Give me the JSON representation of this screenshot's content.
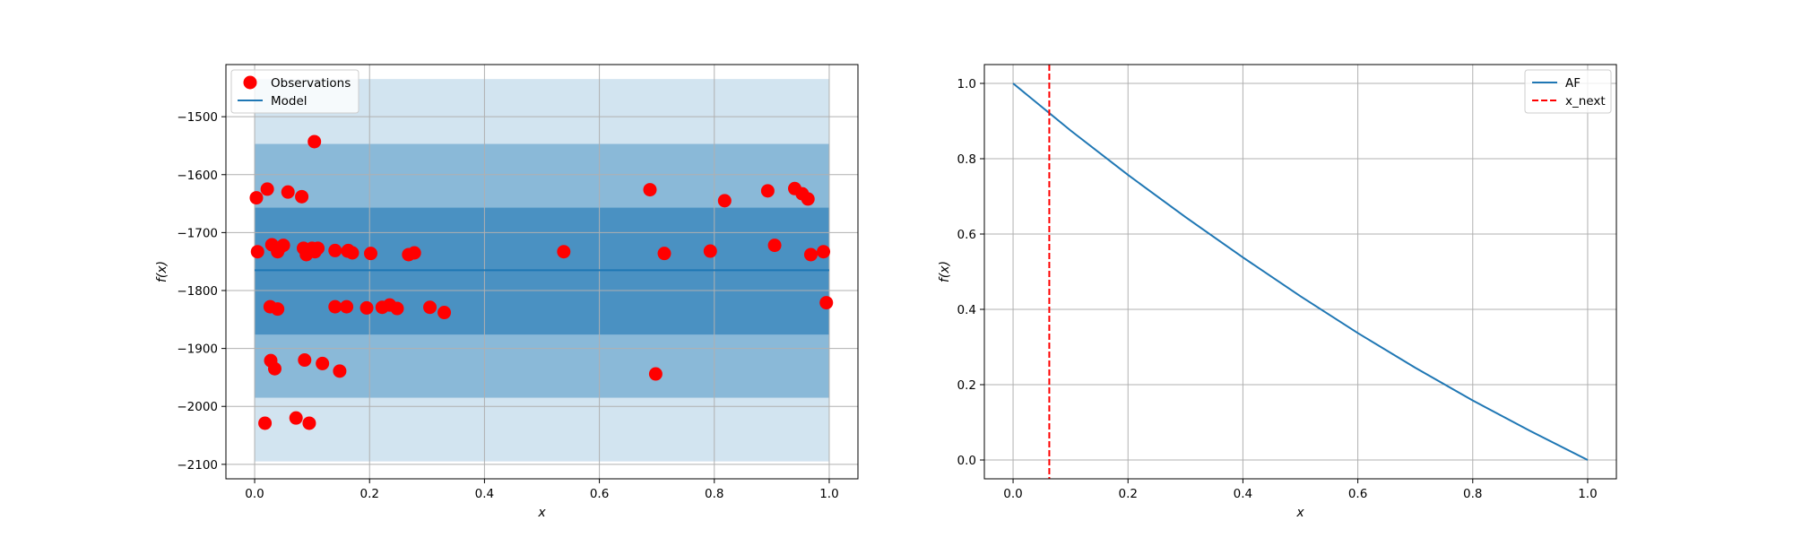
{
  "chart_data": [
    {
      "type": "scatter",
      "xlabel": "x",
      "ylabel": "f(x)",
      "xlim": [
        -0.05,
        1.05
      ],
      "ylim": [
        -2125,
        -1410
      ],
      "xticks": [
        0.0,
        0.2,
        0.4,
        0.6,
        0.8,
        1.0
      ],
      "xtick_labels": [
        "0.0",
        "0.2",
        "0.4",
        "0.6",
        "0.8",
        "1.0"
      ],
      "yticks": [
        -1500,
        -1600,
        -1700,
        -1800,
        -1900,
        -2000,
        -2100
      ],
      "ytick_labels": [
        "−1500",
        "−1600",
        "−1700",
        "−1800",
        "−1900",
        "−2000",
        "−2100"
      ],
      "grid": true,
      "legend_position": "top-left",
      "legend": [
        "Observations",
        "Model"
      ],
      "colors": {
        "observations": "#ff0000",
        "model": "#1f77b4"
      },
      "model": {
        "x": [
          0.0,
          1.0
        ],
        "y": [
          -1765,
          -1765
        ]
      },
      "bands": [
        {
          "lower": -2095,
          "upper": -1435,
          "opacity": 0.2
        },
        {
          "lower": -1985,
          "upper": -1547,
          "opacity": 0.4
        },
        {
          "lower": -1876,
          "upper": -1657,
          "opacity": 0.6
        }
      ],
      "observations": {
        "x": [
          0.003,
          0.005,
          0.018,
          0.022,
          0.027,
          0.028,
          0.03,
          0.035,
          0.04,
          0.04,
          0.043,
          0.05,
          0.058,
          0.072,
          0.082,
          0.085,
          0.087,
          0.09,
          0.095,
          0.1,
          0.104,
          0.105,
          0.11,
          0.118,
          0.14,
          0.14,
          0.148,
          0.16,
          0.162,
          0.163,
          0.17,
          0.195,
          0.202,
          0.222,
          0.235,
          0.248,
          0.268,
          0.278,
          0.305,
          0.33,
          0.538,
          0.688,
          0.698,
          0.713,
          0.793,
          0.818,
          0.893,
          0.905,
          0.94,
          0.953,
          0.963,
          0.968,
          0.99,
          0.995
        ],
        "y": [
          -1640,
          -1733,
          -2029,
          -1625,
          -1828,
          -1921,
          -1721,
          -1935,
          -1832,
          -1733,
          -1727,
          -1722,
          -1630,
          -2020,
          -1638,
          -1727,
          -1920,
          -1738,
          -2029,
          -1727,
          -1543,
          -1733,
          -1727,
          -1926,
          -1828,
          -1731,
          -1939,
          -1828,
          -1732,
          -1731,
          -1735,
          -1830,
          -1736,
          -1829,
          -1825,
          -1831,
          -1738,
          -1735,
          -1829,
          -1838,
          -1733,
          -1626,
          -1944,
          -1736,
          -1732,
          -1645,
          -1628,
          -1722,
          -1624,
          -1633,
          -1642,
          -1738,
          -1733,
          -1821
        ]
      }
    },
    {
      "type": "line",
      "xlabel": "x",
      "ylabel": "f(x)",
      "xlim": [
        -0.05,
        1.05
      ],
      "ylim": [
        -0.05,
        1.05
      ],
      "xticks": [
        0.0,
        0.2,
        0.4,
        0.6,
        0.8,
        1.0
      ],
      "xtick_labels": [
        "0.0",
        "0.2",
        "0.4",
        "0.6",
        "0.8",
        "1.0"
      ],
      "yticks": [
        0.0,
        0.2,
        0.4,
        0.6,
        0.8,
        1.0
      ],
      "ytick_labels": [
        "0.0",
        "0.2",
        "0.4",
        "0.6",
        "0.8",
        "1.0"
      ],
      "grid": true,
      "legend_position": "top-right",
      "legend": [
        "AF",
        "x_next"
      ],
      "colors": {
        "af": "#1f77b4",
        "x_next": "#ff0000"
      },
      "af": {
        "x": [
          0.0,
          0.1,
          0.2,
          0.3,
          0.4,
          0.5,
          0.6,
          0.7,
          0.8,
          0.9,
          1.0
        ],
        "y": [
          1.0,
          0.875,
          0.757,
          0.645,
          0.538,
          0.435,
          0.337,
          0.245,
          0.158,
          0.077,
          0.0
        ]
      },
      "x_next": 0.063
    }
  ]
}
